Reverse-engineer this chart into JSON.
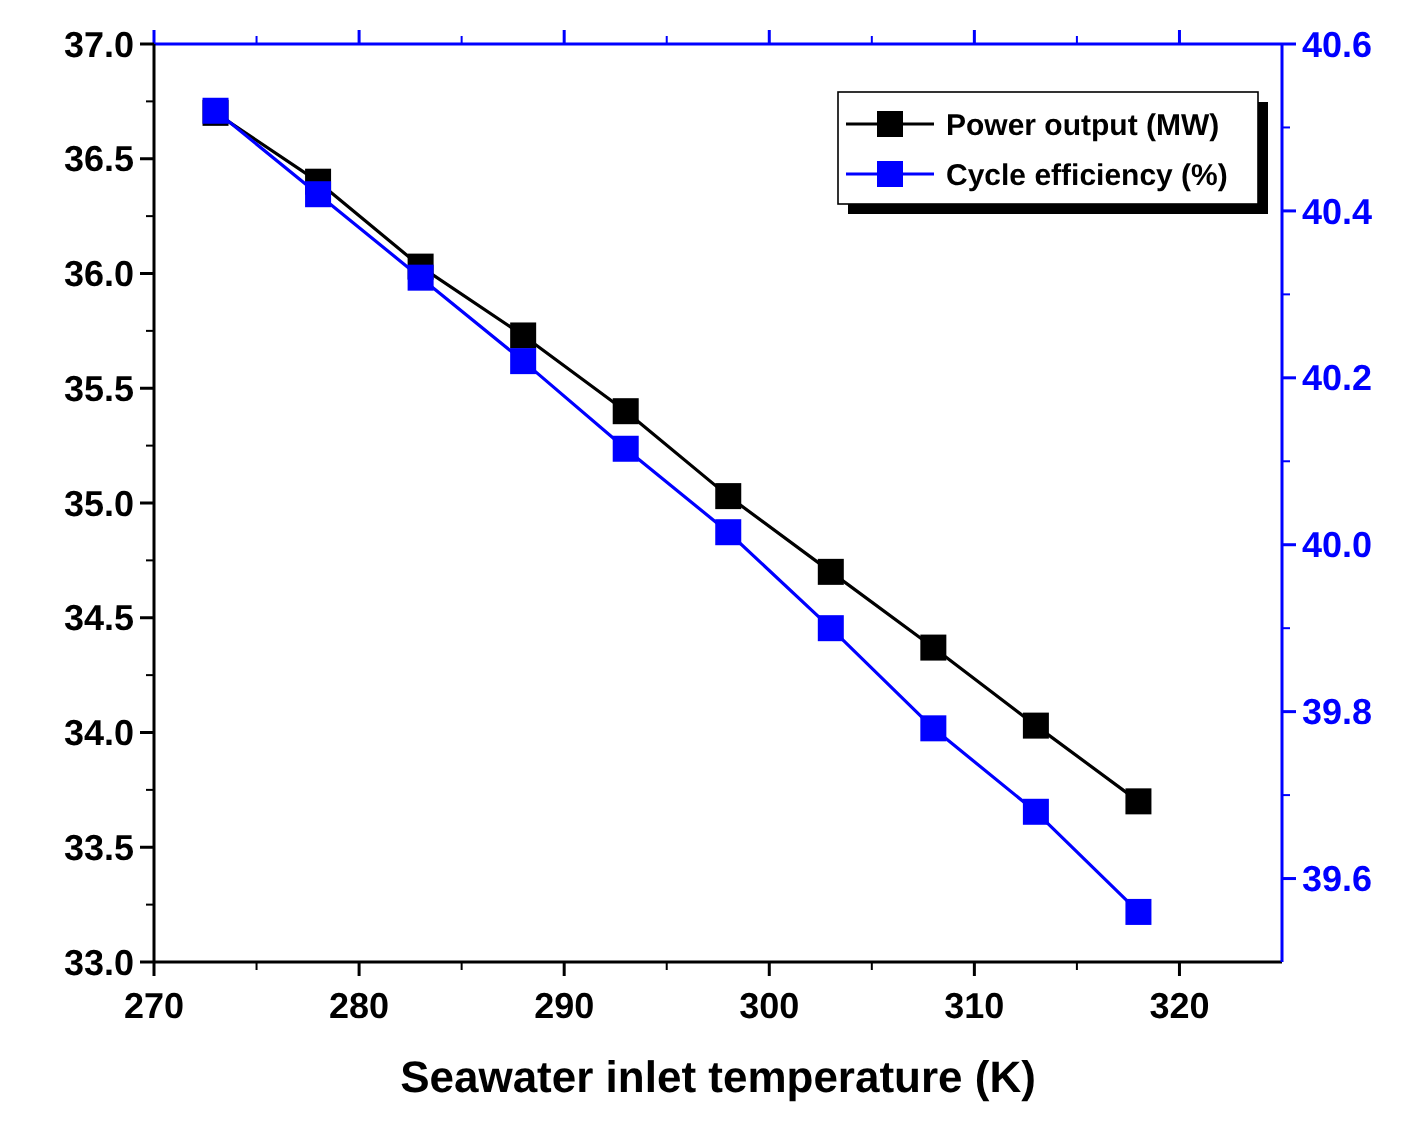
{
  "chart_data": {
    "type": "line",
    "xlabel": "Seawater inlet temperature (K)",
    "x": [
      273,
      278,
      283,
      288,
      293,
      298,
      303,
      308,
      313,
      318
    ],
    "xlim": [
      270,
      325
    ],
    "xticks": [
      270,
      280,
      290,
      300,
      310,
      320
    ],
    "ylim": [
      33,
      37
    ],
    "yticks": [
      {
        "value": 33,
        "label": "33.0"
      },
      33.5,
      {
        "value": 34,
        "label": "34.0"
      },
      34.5,
      {
        "value": 35,
        "label": "35.0"
      },
      35.5,
      {
        "value": 36,
        "label": "36.0"
      },
      36.5,
      {
        "value": 37,
        "label": "37.0"
      }
    ],
    "y2lim": [
      39.5,
      40.6
    ],
    "y2ticks": [
      39.6,
      39.8,
      {
        "value": 40,
        "label": "40.0"
      },
      40.2,
      40.4,
      40.6
    ],
    "marker": "square",
    "legend": "top right",
    "grid": false,
    "series": [
      {
        "name": "Power output (MW)",
        "color": "#000000",
        "values": [
          36.7,
          36.4,
          36.03,
          35.73,
          35.4,
          35.03,
          34.7,
          34.37,
          34.03,
          33.7
        ]
      },
      {
        "name": "Cycle efficiency (%)",
        "color": "#0000ff",
        "axis": "y2",
        "values": [
          40.52,
          40.42,
          40.32,
          40.22,
          40.115,
          40.015,
          39.9,
          39.78,
          39.68,
          39.56
        ]
      }
    ]
  }
}
